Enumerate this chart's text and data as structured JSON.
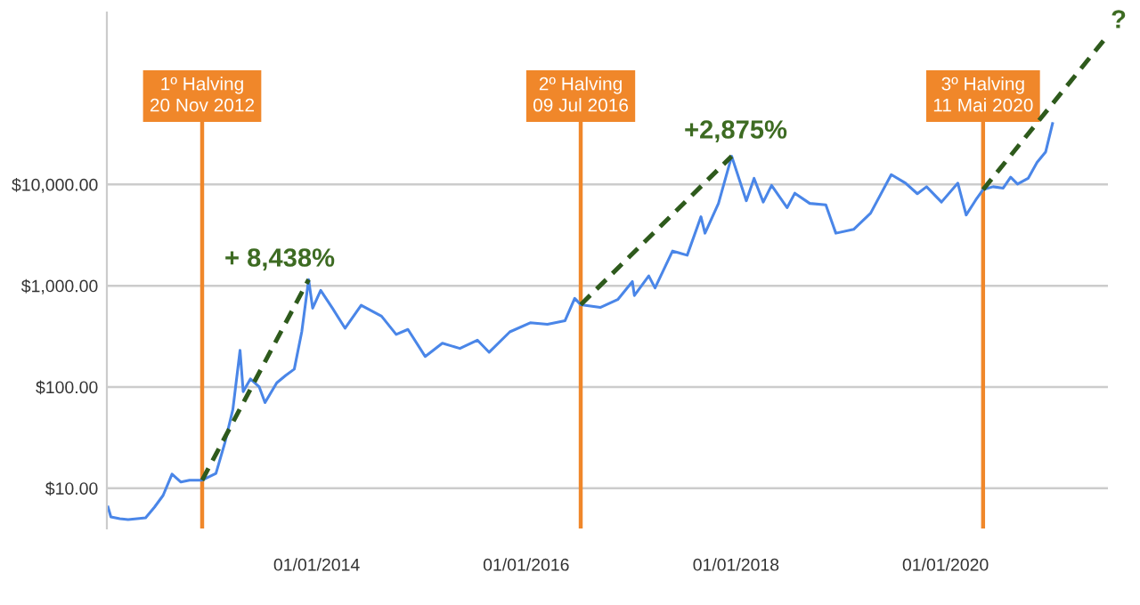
{
  "chart_data": {
    "type": "line",
    "log": "y",
    "grid": "y",
    "xlim": [
      "2012-01-01",
      "2021-07-20"
    ],
    "ylim": [
      4,
      500000
    ],
    "xticks": [
      {
        "value": "2014-01-01",
        "label": "01/01/2014"
      },
      {
        "value": "2016-01-01",
        "label": "01/01/2016"
      },
      {
        "value": "2018-01-01",
        "label": "01/01/2018"
      },
      {
        "value": "2020-01-01",
        "label": "01/01/2020"
      }
    ],
    "yticks": [
      {
        "value": 10,
        "label": "$10.00"
      },
      {
        "value": 100,
        "label": "$100.00"
      },
      {
        "value": 1000,
        "label": "$1,000.00"
      },
      {
        "value": 10000,
        "label": "$10,000.00"
      }
    ],
    "series": [
      {
        "color": "#4a86e8",
        "x": [
          "2012-01-05",
          "2012-01-15",
          "2012-02-15",
          "2012-03-15",
          "2012-04-15",
          "2012-05-15",
          "2012-06-15",
          "2012-07-15",
          "2012-08-15",
          "2012-09-15",
          "2012-10-15",
          "2012-11-28",
          "2013-01-15",
          "2013-02-15",
          "2013-03-15",
          "2013-04-09",
          "2013-04-20",
          "2013-05-15",
          "2013-06-15",
          "2013-07-05",
          "2013-08-15",
          "2013-09-15",
          "2013-10-15",
          "2013-11-10",
          "2013-12-04",
          "2013-12-18",
          "2014-01-15",
          "2014-02-25",
          "2014-04-10",
          "2014-06-05",
          "2014-08-15",
          "2014-10-05",
          "2014-11-15",
          "2015-01-14",
          "2015-03-15",
          "2015-05-15",
          "2015-07-15",
          "2015-08-25",
          "2015-11-05",
          "2016-01-15",
          "2016-03-15",
          "2016-05-15",
          "2016-06-18",
          "2016-07-09",
          "2016-09-15",
          "2016-11-15",
          "2017-01-05",
          "2017-01-12",
          "2017-03-03",
          "2017-03-25",
          "2017-05-25",
          "2017-07-15",
          "2017-09-01",
          "2017-09-15",
          "2017-11-01",
          "2017-12-17",
          "2018-02-06",
          "2018-03-05",
          "2018-04-06",
          "2018-05-05",
          "2018-06-28",
          "2018-07-25",
          "2018-09-15",
          "2018-11-10",
          "2018-12-15",
          "2019-02-15",
          "2019-04-15",
          "2019-06-26",
          "2019-08-15",
          "2019-09-25",
          "2019-10-27",
          "2019-12-18",
          "2020-02-13",
          "2020-03-13",
          "2020-04-15",
          "2020-05-11",
          "2020-06-15",
          "2020-07-20",
          "2020-08-15",
          "2020-09-08",
          "2020-10-15",
          "2020-11-15",
          "2020-12-15",
          "2021-01-08"
        ],
        "values": [
          6.5,
          5.2,
          5.0,
          4.9,
          5.0,
          5.1,
          6.5,
          8.5,
          13.8,
          11.5,
          12.0,
          12.0,
          14,
          28,
          60,
          230,
          90,
          120,
          100,
          70,
          110,
          130,
          150,
          350,
          1150,
          600,
          900,
          600,
          380,
          640,
          500,
          330,
          370,
          200,
          270,
          240,
          290,
          220,
          350,
          430,
          415,
          450,
          750,
          650,
          610,
          730,
          1100,
          800,
          1250,
          950,
          2200,
          2000,
          4800,
          3300,
          6500,
          19000,
          6900,
          11500,
          6700,
          9800,
          5900,
          8200,
          6500,
          6300,
          3300,
          3600,
          5200,
          12500,
          10300,
          8100,
          9500,
          6700,
          10300,
          5000,
          7000,
          8900,
          9500,
          9200,
          11800,
          10100,
          11500,
          16500,
          21000,
          40000
        ]
      },
      {
        "color": "#2e5a1c",
        "line_style": "dashed",
        "x": [
          "2012-11-28",
          "2013-12-04"
        ],
        "values": [
          12,
          1150
        ]
      },
      {
        "color": "#2e5a1c",
        "line_style": "dashed",
        "x": [
          "2016-07-09",
          "2017-12-17"
        ],
        "values": [
          650,
          19000
        ]
      },
      {
        "color": "#2e5a1c",
        "line_style": "dashed",
        "x": [
          "2020-05-11",
          "2021-07-10"
        ],
        "values": [
          8900,
          275000
        ]
      }
    ],
    "ref_lines": [
      {
        "axis": "x",
        "value": "2012-11-28",
        "label": "1º Halving\n20 Nov 2012",
        "color": "#f0872a"
      },
      {
        "axis": "x",
        "value": "2016-07-09",
        "label": "2º Halving\n09 Jul 2016",
        "color": "#f0872a"
      },
      {
        "axis": "x",
        "value": "2020-05-11",
        "label": "3º Halving\n11 Mai 2020",
        "color": "#f0872a"
      }
    ],
    "annotations": [
      "+ 8,438%",
      "+2,875%",
      "?"
    ]
  }
}
